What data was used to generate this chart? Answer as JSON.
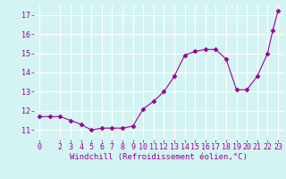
{
  "x": [
    0,
    1,
    2,
    3,
    4,
    5,
    6,
    7,
    8,
    9,
    10,
    11,
    12,
    13,
    14,
    15,
    16,
    17,
    18,
    19,
    20,
    21,
    22,
    22.5,
    23
  ],
  "y": [
    11.7,
    11.7,
    11.7,
    11.5,
    11.3,
    11.0,
    11.1,
    11.1,
    11.1,
    11.2,
    12.1,
    12.5,
    13.0,
    13.8,
    14.9,
    15.1,
    15.2,
    15.2,
    14.7,
    13.1,
    13.1,
    13.8,
    15.0,
    16.2,
    17.2
  ],
  "line_color": "#990099",
  "marker": "D",
  "marker_size": 2.5,
  "xlabel": "Windchill (Refroidissement éolien,°C)",
  "xlim": [
    -0.5,
    23.5
  ],
  "ylim": [
    10.5,
    17.5
  ],
  "yticks": [
    11,
    12,
    13,
    14,
    15,
    16,
    17
  ],
  "xticks": [
    0,
    2,
    3,
    4,
    5,
    6,
    7,
    8,
    9,
    10,
    11,
    12,
    13,
    14,
    15,
    16,
    17,
    18,
    19,
    20,
    21,
    22,
    23
  ],
  "bg_color": "#d4f4f4",
  "grid_color": "#ffffff",
  "tick_color": "#990099",
  "label_color": "#990099",
  "xlabel_fontsize": 6.5,
  "tick_fontsize": 6.0
}
